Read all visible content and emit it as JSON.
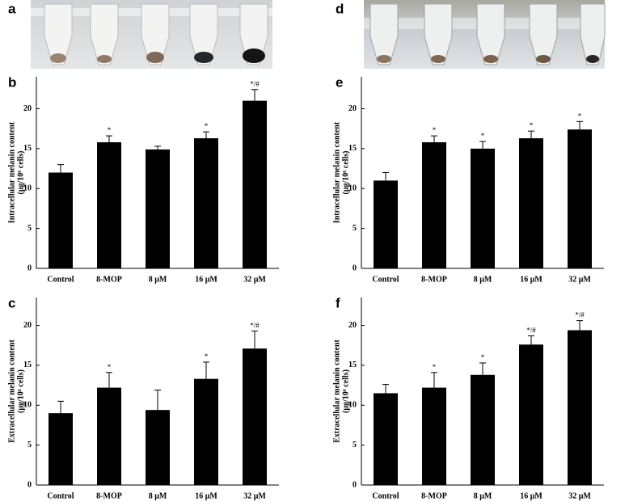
{
  "photo_labels": [
    "a",
    "d"
  ],
  "chart_data": [
    {
      "type": "bar",
      "panel": "b",
      "ylabel": [
        "Intracellular melanin content",
        "(μg/10⁶ cells)"
      ],
      "categories": [
        "Control",
        "8-MOP",
        "8 μM",
        "16 μM",
        "32 μM"
      ],
      "values": [
        12.0,
        15.8,
        14.9,
        16.3,
        21.0
      ],
      "errors": [
        1.0,
        0.8,
        0.4,
        0.8,
        1.4
      ],
      "annotations": [
        null,
        "*",
        null,
        "*",
        "*/#"
      ],
      "color": "#000000",
      "ylim": [
        0,
        24
      ],
      "yticks": [
        0,
        5,
        10,
        15,
        20
      ]
    },
    {
      "type": "bar",
      "panel": "c",
      "ylabel": [
        "Extracellular melanin content",
        "(μg/10⁶ cells)"
      ],
      "categories": [
        "Control",
        "8-MOP",
        "8 μM",
        "16 μM",
        "32 μM"
      ],
      "values": [
        9.0,
        12.2,
        9.4,
        13.3,
        17.1
      ],
      "errors": [
        1.5,
        1.9,
        2.5,
        2.1,
        2.2
      ],
      "annotations": [
        null,
        "*",
        null,
        "*",
        "*/#"
      ],
      "color": "#000000",
      "ylim": [
        0,
        23.5
      ],
      "yticks": [
        0,
        5,
        10,
        15,
        20
      ]
    },
    {
      "type": "bar",
      "panel": "e",
      "ylabel": [
        "Intracellular melanin content",
        "(μg/10⁶ cells)"
      ],
      "categories": [
        "Control",
        "8-MOP",
        "8 μM",
        "16 μM",
        "32 μM"
      ],
      "values": [
        11.0,
        15.8,
        15.0,
        16.3,
        17.4
      ],
      "errors": [
        1.0,
        0.8,
        0.9,
        0.9,
        1.0
      ],
      "annotations": [
        null,
        "*",
        "*",
        "*",
        "*"
      ],
      "color": "#000000",
      "ylim": [
        0,
        24
      ],
      "yticks": [
        0,
        5,
        10,
        15,
        20
      ]
    },
    {
      "type": "bar",
      "panel": "f",
      "ylabel": [
        "Extracellular melanin content",
        "(μg/10⁶ cells)"
      ],
      "categories": [
        "Control",
        "8-MOP",
        "8 μM",
        "16 μM",
        "32 μM"
      ],
      "values": [
        11.5,
        12.2,
        13.8,
        17.6,
        19.4
      ],
      "errors": [
        1.1,
        1.9,
        1.5,
        1.1,
        1.2
      ],
      "annotations": [
        null,
        "*",
        "*",
        "*/#",
        "*/#"
      ],
      "color": "#000000",
      "ylim": [
        0,
        23.5
      ],
      "yticks": [
        0,
        5,
        10,
        15,
        20
      ]
    }
  ]
}
